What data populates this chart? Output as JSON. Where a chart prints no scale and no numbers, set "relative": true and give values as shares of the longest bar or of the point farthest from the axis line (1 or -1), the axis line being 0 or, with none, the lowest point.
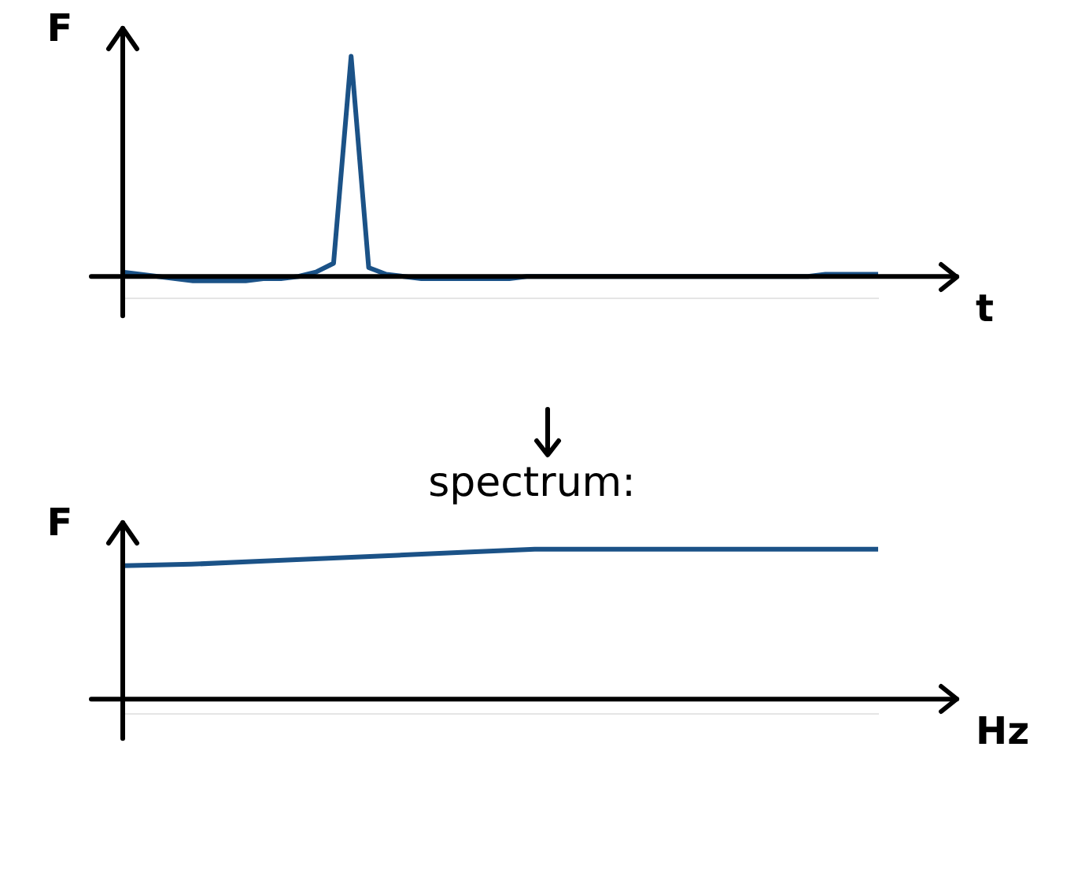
{
  "chart_data": [
    {
      "type": "line",
      "ylabel": "F",
      "xlabel": "t",
      "relative": true,
      "marker": "none",
      "categories": [
        null,
        null,
        null,
        null,
        null,
        null,
        null,
        null,
        null,
        null,
        null,
        null,
        null,
        null,
        null,
        null,
        null,
        null,
        null,
        null,
        null,
        null,
        null,
        null,
        null,
        null,
        null,
        null,
        null,
        null,
        null,
        null,
        null,
        null,
        null,
        null,
        null,
        null,
        null,
        null,
        null,
        null,
        null,
        null
      ],
      "series": [
        {
          "color": "#1b5287",
          "values": [
            0.02,
            0.01,
            0,
            -0.01,
            -0.02,
            -0.02,
            -0.02,
            -0.02,
            -0.01,
            -0.01,
            0,
            0.02,
            0.06,
            1,
            0.04,
            0.01,
            0,
            -0.01,
            -0.01,
            -0.01,
            -0.01,
            -0.01,
            -0.01,
            0,
            0,
            0,
            0,
            0,
            0,
            0,
            0,
            0,
            0,
            0,
            0,
            0,
            0,
            0,
            0,
            0,
            0.01,
            0.01,
            0.01,
            0.01
          ]
        }
      ]
    },
    {
      "type": "line",
      "ylabel": "F",
      "xlabel": "Hz",
      "relative": true,
      "marker": "none",
      "annotations": [
        "spectrum:"
      ],
      "categories": [
        null,
        null,
        null,
        null,
        null,
        null,
        null,
        null,
        null,
        null,
        null,
        null
      ],
      "series": [
        {
          "color": "#1b5287",
          "values": [
            0.89,
            0.9,
            0.92,
            0.94,
            0.96,
            0.98,
            1,
            1,
            1,
            1,
            1,
            1
          ]
        }
      ]
    }
  ]
}
